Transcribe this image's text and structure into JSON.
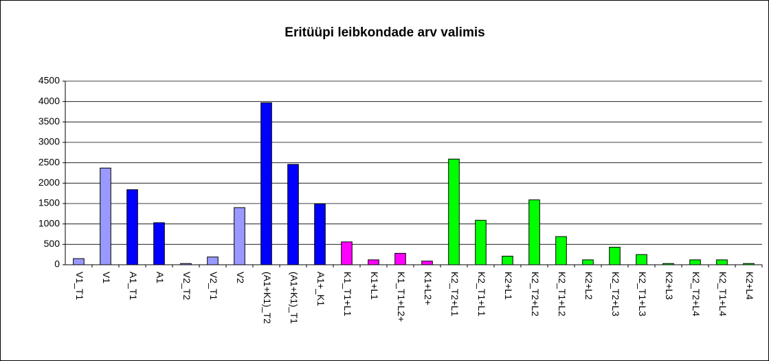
{
  "chart_data": {
    "type": "bar",
    "title": "Eritüüpi leibkondade arv valimis",
    "categories": [
      "V1_T1",
      "V1",
      "A1_T1",
      "A1",
      "V2_T2",
      "V2_T1",
      "V2",
      "(A1+K1)_T2",
      "(A1+K1)_T1",
      "A1+_K1",
      "K1_T1+L1",
      "K1+L1",
      "K1_T1+L2+",
      "K1+L2+",
      "K2_T2+L1",
      "K2_T1+L1",
      "K2+L1",
      "K2_T2+L2",
      "K2_T1+L2",
      "K2+L2",
      "K2_T2+L3",
      "K2_T1+L3",
      "K2+L3",
      "K2_T2+L4",
      "K2_T1+L4",
      "K2+L4"
    ],
    "values": [
      150,
      2370,
      1840,
      1030,
      30,
      190,
      1400,
      3970,
      2460,
      1490,
      560,
      120,
      280,
      90,
      2590,
      1090,
      210,
      1590,
      690,
      120,
      430,
      250,
      30,
      120,
      120,
      30
    ],
    "colors": [
      "#9999ff",
      "#9999ff",
      "#0000ff",
      "#0000ff",
      "#9999ff",
      "#9999ff",
      "#9999ff",
      "#0000ff",
      "#0000ff",
      "#0000ff",
      "#ff00ff",
      "#ff00ff",
      "#ff00ff",
      "#ff00ff",
      "#00ff00",
      "#00ff00",
      "#00ff00",
      "#00ff00",
      "#00ff00",
      "#00ff00",
      "#00ff00",
      "#00ff00",
      "#00ff00",
      "#00ff00",
      "#00ff00",
      "#00ff00"
    ],
    "ylim": [
      0,
      4500
    ],
    "yticks": [
      0,
      500,
      1000,
      1500,
      2000,
      2500,
      3000,
      3500,
      4000,
      4500
    ],
    "grid": true
  }
}
